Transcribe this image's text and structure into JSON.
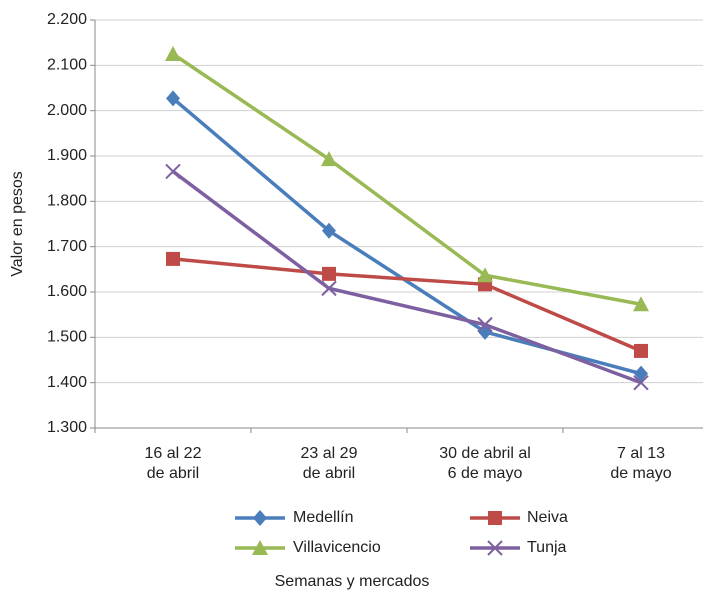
{
  "chart_data": {
    "type": "line",
    "y_label": "Valor en pesos",
    "x_label": "Semanas y mercados",
    "categories": [
      [
        "16 al 22",
        "de abril"
      ],
      [
        "23 al 29",
        "de abril"
      ],
      [
        "30 de abril al",
        "6 de mayo"
      ],
      [
        "7 al 13",
        "de mayo"
      ]
    ],
    "series": [
      {
        "name": "Medellín",
        "color": "#4a7ebb",
        "marker": "diamond",
        "values": [
          2027,
          1735,
          1512,
          1420
        ]
      },
      {
        "name": "Neiva",
        "color": "#be4b48",
        "marker": "square",
        "values": [
          1673,
          1640,
          1617,
          1470
        ]
      },
      {
        "name": "Villavicencio",
        "color": "#98b954",
        "marker": "triangle",
        "values": [
          2125,
          1893,
          1637,
          1573
        ]
      },
      {
        "name": "Tunja",
        "color": "#7d60a0",
        "marker": "x",
        "values": [
          1866,
          1608,
          1528,
          1400
        ]
      }
    ],
    "ylim": [
      1300,
      2200
    ],
    "yticks": [
      {
        "value": 1300,
        "label": "1.300"
      },
      {
        "value": 1400,
        "label": "1.400"
      },
      {
        "value": 1500,
        "label": "1.500"
      },
      {
        "value": 1600,
        "label": "1.600"
      },
      {
        "value": 1700,
        "label": "1.700"
      },
      {
        "value": 1800,
        "label": "1.800"
      },
      {
        "value": 1900,
        "label": "1.900"
      },
      {
        "value": 2000,
        "label": "2.000"
      },
      {
        "value": 2100,
        "label": "2.100"
      },
      {
        "value": 2200,
        "label": "2.200"
      }
    ],
    "grid": true
  }
}
